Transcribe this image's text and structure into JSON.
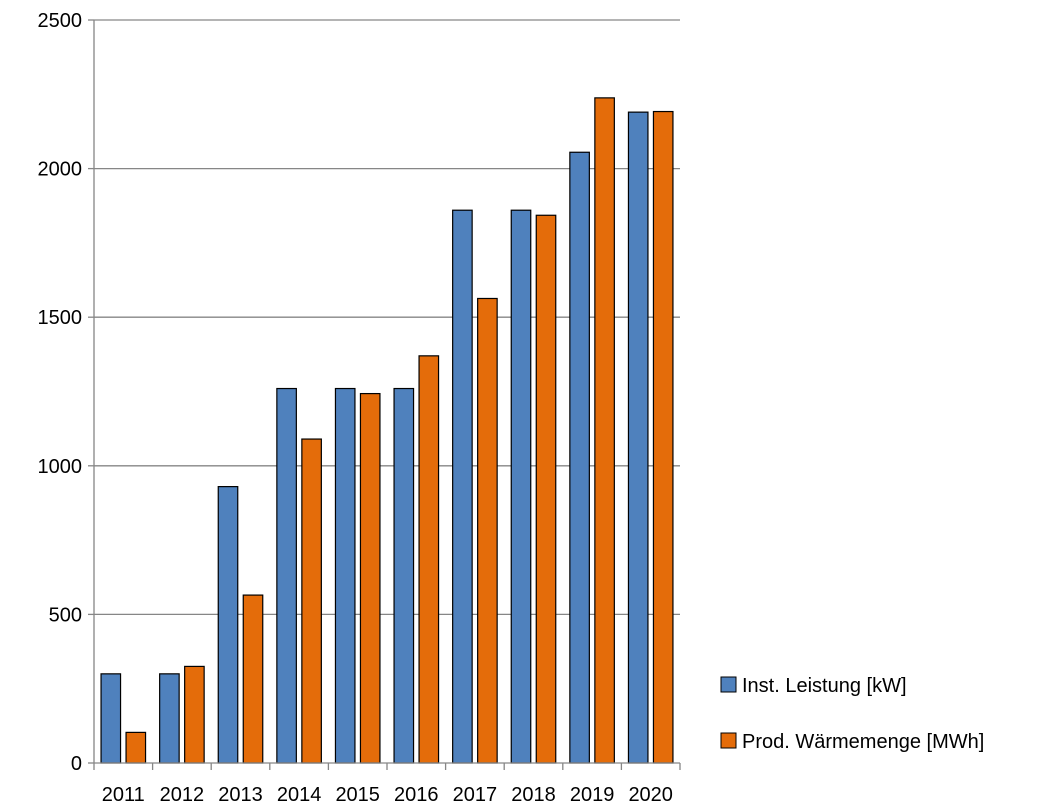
{
  "chart_data": {
    "type": "bar",
    "categories": [
      "2011",
      "2012",
      "2013",
      "2014",
      "2015",
      "2016",
      "2017",
      "2018",
      "2019",
      "2020"
    ],
    "series": [
      {
        "name": "Inst. Leistung [kW]",
        "color": "#4F81BD",
        "values": [
          300,
          300,
          930,
          1260,
          1260,
          1260,
          1860,
          1860,
          2055,
          2190
        ]
      },
      {
        "name": "Prod. Wärmemenge [MWh]",
        "color": "#E46C0A",
        "values": [
          103,
          325,
          565,
          1090,
          1243,
          1370,
          1563,
          1843,
          2238,
          2192
        ]
      }
    ],
    "ylim": [
      0,
      2500
    ],
    "yticks": [
      "0",
      "500",
      "1000",
      "1500",
      "2000",
      "2500"
    ],
    "grid": true,
    "legend": "right"
  }
}
